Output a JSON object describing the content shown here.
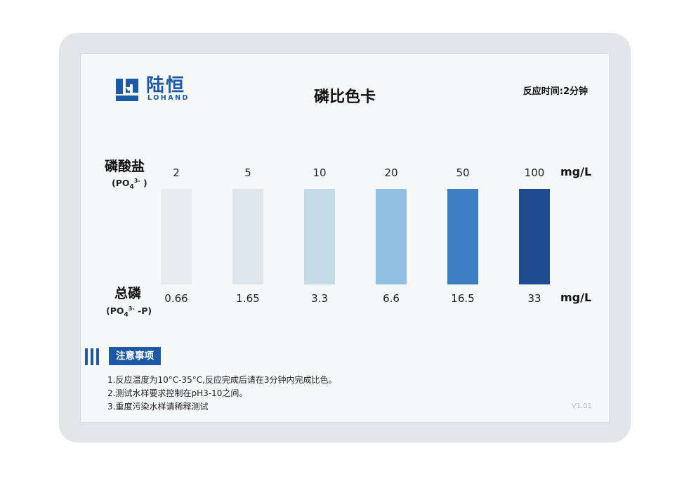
{
  "brand": {
    "name_cn": "陆恒",
    "name_en": "LOHAND"
  },
  "title": "磷比色卡",
  "reaction_time": "反应时间:2分钟",
  "phosphate": {
    "label": "磷酸盐",
    "formula_prefix": "(PO",
    "formula_sub": "4",
    "formula_sup": "3-",
    "formula_suffix": " )"
  },
  "total_phosphorus": {
    "label": "总磷",
    "formula_prefix": "(PO",
    "formula_sub": "4",
    "formula_sup": "3-",
    "formula_suffix": " -P)"
  },
  "unit": "mg/L",
  "levels": [
    {
      "phosphate": "2",
      "total_p": "0.66",
      "color": "#e9ebef"
    },
    {
      "phosphate": "5",
      "total_p": "1.65",
      "color": "#dde6ec"
    },
    {
      "phosphate": "10",
      "total_p": "3.3",
      "color": "#c4dbea"
    },
    {
      "phosphate": "20",
      "total_p": "6.6",
      "color": "#8fc0e2"
    },
    {
      "phosphate": "50",
      "total_p": "16.5",
      "color": "#3d7fc3"
    },
    {
      "phosphate": "100",
      "total_p": "33",
      "color": "#1f4c8f"
    }
  ],
  "notice": {
    "heading": "注意事项",
    "items": [
      "1.反应温度为10°C-35°C,反应完成后请在3分钟内完成比色。",
      "2.测试水样要求控制在pH3-10之间。",
      "3.重度污染水样请稀释测试"
    ]
  },
  "version": "V1.01",
  "accent_color": "#1c5aa8"
}
